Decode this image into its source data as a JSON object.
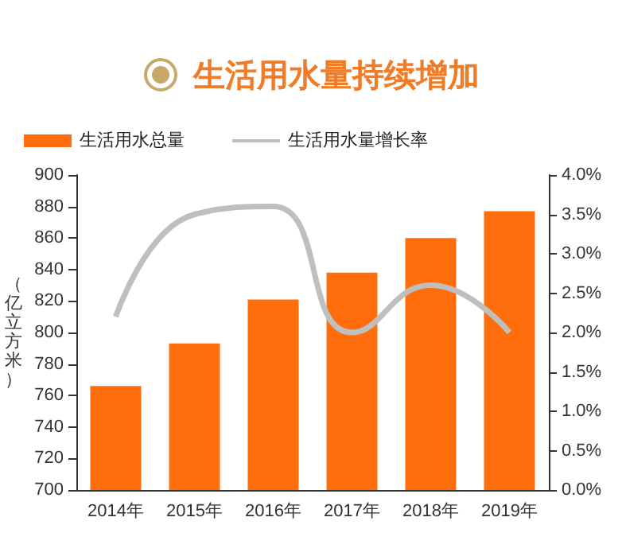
{
  "chart_data": {
    "type": "bar",
    "title": "生活用水量持续增加",
    "ylabel": "（亿立方米）",
    "categories": [
      "2014年",
      "2015年",
      "2016年",
      "2017年",
      "2018年",
      "2019年"
    ],
    "series": [
      {
        "name": "生活用水总量",
        "color": "#ff6d0c",
        "values": [
          766,
          793,
          821,
          838,
          860,
          877
        ]
      },
      {
        "name": "生活用水量增长率",
        "type": "line",
        "axis": "y2",
        "color": "#bfbfbf",
        "values": [
          2.2,
          3.5,
          3.6,
          2.0,
          2.6,
          2.0
        ]
      }
    ],
    "ylim": [
      700,
      900
    ],
    "yticks": [
      700,
      720,
      740,
      760,
      780,
      800,
      820,
      840,
      860,
      880,
      900
    ],
    "y2lim": [
      0,
      4
    ],
    "y2ticks": [
      {
        "value": 0,
        "label": "0.0%"
      },
      {
        "value": 0.5,
        "label": "0.5%"
      },
      {
        "value": 1,
        "label": "1.0%"
      },
      {
        "value": 1.5,
        "label": "1.5%"
      },
      {
        "value": 2,
        "label": "2.0%"
      },
      {
        "value": 2.5,
        "label": "2.5%"
      },
      {
        "value": 3,
        "label": "3.0%"
      },
      {
        "value": 3.5,
        "label": "3.5%"
      },
      {
        "value": 4,
        "label": "4.0%"
      }
    ],
    "legend": "top left",
    "grid": false,
    "marker": "none"
  }
}
